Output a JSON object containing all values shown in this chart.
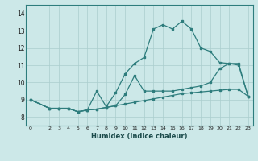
{
  "xlabel": "Humidex (Indice chaleur)",
  "background_color": "#cce8e8",
  "grid_color": "#aacece",
  "line_color": "#2e7d7d",
  "xlim": [
    -0.5,
    23.5
  ],
  "ylim": [
    7.5,
    14.5
  ],
  "xticks": [
    0,
    2,
    3,
    4,
    5,
    6,
    7,
    8,
    9,
    10,
    11,
    12,
    13,
    14,
    15,
    16,
    17,
    18,
    19,
    20,
    21,
    22,
    23
  ],
  "yticks": [
    8,
    9,
    10,
    11,
    12,
    13,
    14
  ],
  "line_bottom_x": [
    0,
    2,
    3,
    4,
    5,
    6,
    7,
    8,
    9,
    10,
    11,
    12,
    13,
    14,
    15,
    16,
    17,
    18,
    19,
    20,
    21,
    22,
    23
  ],
  "line_bottom_y": [
    9.0,
    8.5,
    8.5,
    8.5,
    8.3,
    8.4,
    8.45,
    8.55,
    8.65,
    8.75,
    8.85,
    8.95,
    9.05,
    9.15,
    9.25,
    9.35,
    9.4,
    9.45,
    9.5,
    9.55,
    9.6,
    9.6,
    9.2
  ],
  "line_mid_x": [
    0,
    2,
    3,
    4,
    5,
    6,
    7,
    8,
    9,
    10,
    11,
    12,
    13,
    14,
    15,
    16,
    17,
    18,
    19,
    20,
    21,
    22,
    23
  ],
  "line_mid_y": [
    9.0,
    8.5,
    8.5,
    8.5,
    8.3,
    8.4,
    8.45,
    8.55,
    8.65,
    9.3,
    10.4,
    9.5,
    9.5,
    9.5,
    9.5,
    9.6,
    9.7,
    9.8,
    10.0,
    10.8,
    11.1,
    11.1,
    9.2
  ],
  "line_top_x": [
    0,
    2,
    3,
    4,
    5,
    6,
    7,
    8,
    9,
    10,
    11,
    12,
    13,
    14,
    15,
    16,
    17,
    18,
    19,
    20,
    21,
    22,
    23
  ],
  "line_top_y": [
    9.0,
    8.5,
    8.5,
    8.5,
    8.3,
    8.4,
    9.5,
    8.6,
    9.4,
    10.5,
    11.1,
    11.45,
    13.1,
    13.35,
    13.1,
    13.55,
    13.1,
    12.0,
    11.8,
    11.15,
    11.1,
    11.0,
    9.2
  ]
}
